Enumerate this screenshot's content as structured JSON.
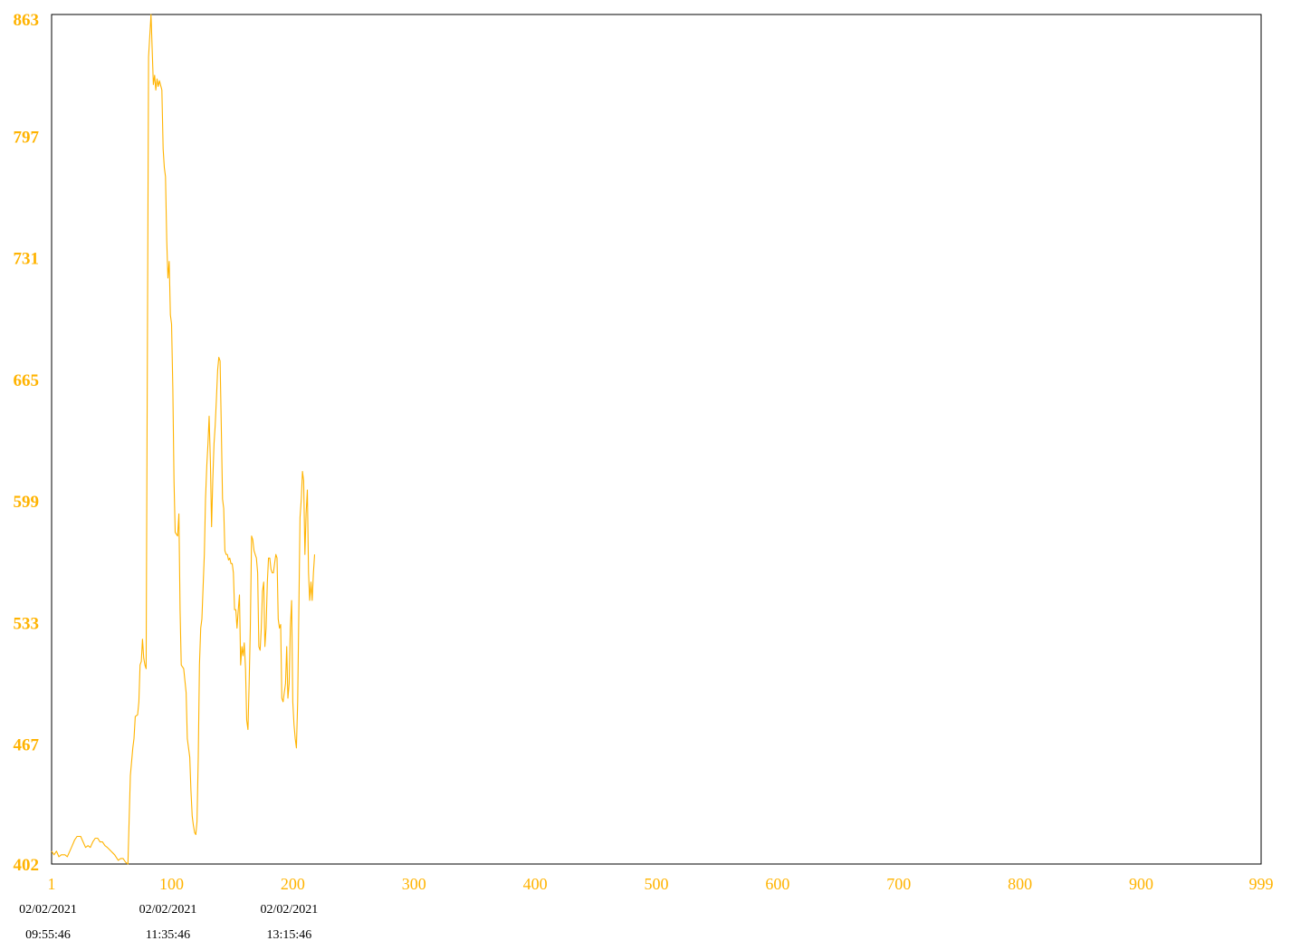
{
  "chart_data": {
    "type": "line",
    "title": "",
    "xlabel": "",
    "ylabel": "",
    "xlim": [
      1,
      999
    ],
    "ylim": [
      402,
      863
    ],
    "grid": false,
    "legend": "none",
    "colors": {
      "line": "#FFB300",
      "axis_text": "#FFB300",
      "frame": "#000000",
      "time_labels": "#000000"
    },
    "y_ticks": [
      "863",
      "797",
      "731",
      "665",
      "599",
      "533",
      "467",
      "402"
    ],
    "y_tick_values": [
      863,
      797,
      731,
      665,
      599,
      533,
      467,
      402
    ],
    "x_ticks": [
      "1",
      "100",
      "200",
      "300",
      "400",
      "500",
      "600",
      "700",
      "800",
      "900",
      "999"
    ],
    "x_tick_values": [
      1,
      100,
      200,
      300,
      400,
      500,
      600,
      700,
      800,
      900,
      999
    ],
    "time_labels": [
      {
        "x": 1,
        "date": "02/02/2021",
        "time": "09:55:46"
      },
      {
        "x": 100,
        "date": "02/02/2021",
        "time": "11:35:46"
      },
      {
        "x": 200,
        "date": "02/02/2021",
        "time": "13:15:46"
      }
    ],
    "series": [
      {
        "points": [
          [
            1,
            409
          ],
          [
            3,
            407
          ],
          [
            5,
            409
          ],
          [
            7,
            406
          ],
          [
            9,
            407
          ],
          [
            12,
            407
          ],
          [
            14,
            406
          ],
          [
            16,
            409
          ],
          [
            18,
            412
          ],
          [
            20,
            415
          ],
          [
            22,
            417
          ],
          [
            25,
            417
          ],
          [
            27,
            414
          ],
          [
            29,
            411
          ],
          [
            31,
            412
          ],
          [
            33,
            411
          ],
          [
            35,
            414
          ],
          [
            37,
            416
          ],
          [
            39,
            416
          ],
          [
            41,
            414
          ],
          [
            43,
            414
          ],
          [
            45,
            412
          ],
          [
            47,
            411
          ],
          [
            50,
            409
          ],
          [
            53,
            407
          ],
          [
            56,
            404
          ],
          [
            58,
            405
          ],
          [
            60,
            405
          ],
          [
            62,
            403
          ],
          [
            64,
            402
          ],
          [
            66,
            450
          ],
          [
            68,
            465
          ],
          [
            69,
            470
          ],
          [
            70,
            482
          ],
          [
            72,
            483
          ],
          [
            73,
            490
          ],
          [
            74,
            510
          ],
          [
            75,
            512
          ],
          [
            76,
            524
          ],
          [
            77,
            514
          ],
          [
            78,
            510
          ],
          [
            79,
            508
          ],
          [
            81,
            840
          ],
          [
            83,
            863
          ],
          [
            85,
            825
          ],
          [
            86,
            830
          ],
          [
            87,
            822
          ],
          [
            88,
            828
          ],
          [
            89,
            824
          ],
          [
            90,
            827
          ],
          [
            92,
            822
          ],
          [
            93,
            790
          ],
          [
            94,
            780
          ],
          [
            95,
            775
          ],
          [
            96,
            740
          ],
          [
            97,
            720
          ],
          [
            98,
            729
          ],
          [
            99,
            700
          ],
          [
            100,
            695
          ],
          [
            101,
            660
          ],
          [
            102,
            610
          ],
          [
            103,
            582
          ],
          [
            105,
            580
          ],
          [
            106,
            592
          ],
          [
            107,
            540
          ],
          [
            108,
            510
          ],
          [
            110,
            508
          ],
          [
            112,
            495
          ],
          [
            113,
            470
          ],
          [
            115,
            460
          ],
          [
            116,
            442
          ],
          [
            117,
            428
          ],
          [
            118,
            423
          ],
          [
            119,
            419
          ],
          [
            120,
            418
          ],
          [
            121,
            425
          ],
          [
            122,
            460
          ],
          [
            123,
            510
          ],
          [
            124,
            530
          ],
          [
            125,
            535
          ],
          [
            127,
            570
          ],
          [
            128,
            600
          ],
          [
            129,
            618
          ],
          [
            130,
            630
          ],
          [
            131,
            645
          ],
          [
            132,
            620
          ],
          [
            133,
            585
          ],
          [
            134,
            610
          ],
          [
            135,
            630
          ],
          [
            136,
            640
          ],
          [
            137,
            655
          ],
          [
            138,
            670
          ],
          [
            139,
            677
          ],
          [
            140,
            675
          ],
          [
            141,
            640
          ],
          [
            142,
            600
          ],
          [
            143,
            595
          ],
          [
            144,
            572
          ],
          [
            145,
            570
          ],
          [
            146,
            570
          ],
          [
            147,
            567
          ],
          [
            148,
            568
          ],
          [
            149,
            565
          ],
          [
            150,
            565
          ],
          [
            151,
            560
          ],
          [
            152,
            540
          ],
          [
            153,
            540
          ],
          [
            154,
            530
          ],
          [
            155,
            540
          ],
          [
            156,
            548
          ],
          [
            157,
            510
          ],
          [
            158,
            520
          ],
          [
            159,
            515
          ],
          [
            160,
            522
          ],
          [
            161,
            508
          ],
          [
            162,
            480
          ],
          [
            163,
            475
          ],
          [
            164,
            500
          ],
          [
            165,
            530
          ],
          [
            166,
            580
          ],
          [
            167,
            578
          ],
          [
            168,
            572
          ],
          [
            169,
            570
          ],
          [
            170,
            568
          ],
          [
            171,
            560
          ],
          [
            172,
            520
          ],
          [
            173,
            518
          ],
          [
            174,
            530
          ],
          [
            175,
            550
          ],
          [
            176,
            555
          ],
          [
            177,
            520
          ],
          [
            178,
            530
          ],
          [
            179,
            555
          ],
          [
            180,
            568
          ],
          [
            181,
            568
          ],
          [
            182,
            562
          ],
          [
            183,
            560
          ],
          [
            184,
            560
          ],
          [
            185,
            565
          ],
          [
            186,
            570
          ],
          [
            187,
            568
          ],
          [
            188,
            535
          ],
          [
            189,
            530
          ],
          [
            190,
            532
          ],
          [
            191,
            492
          ],
          [
            192,
            490
          ],
          [
            193,
            495
          ],
          [
            194,
            500
          ],
          [
            195,
            520
          ],
          [
            196,
            492
          ],
          [
            197,
            500
          ],
          [
            198,
            530
          ],
          [
            199,
            545
          ],
          [
            200,
            490
          ],
          [
            201,
            478
          ],
          [
            202,
            470
          ],
          [
            203,
            465
          ],
          [
            204,
            490
          ],
          [
            205,
            540
          ],
          [
            206,
            590
          ],
          [
            207,
            600
          ],
          [
            208,
            615
          ],
          [
            209,
            610
          ],
          [
            210,
            570
          ],
          [
            211,
            592
          ],
          [
            212,
            605
          ],
          [
            213,
            560
          ],
          [
            214,
            545
          ],
          [
            215,
            555
          ],
          [
            216,
            545
          ],
          [
            217,
            560
          ],
          [
            218,
            570
          ]
        ]
      }
    ]
  }
}
